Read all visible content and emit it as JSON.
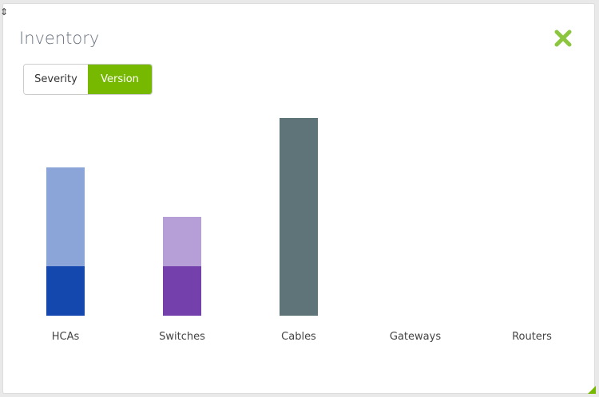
{
  "title": "Inventory",
  "toggle": {
    "options": [
      "Severity",
      "Version"
    ],
    "selected": "Version"
  },
  "icons": {
    "close": "close-x-icon",
    "resize": "resize-corner-icon"
  },
  "colors": {
    "accent": "#76b900",
    "close": "#8cc63f"
  },
  "chart_data": {
    "type": "bar",
    "stacked": true,
    "categories": [
      "HCAs",
      "Switches",
      "Cables",
      "Gateways",
      "Routers"
    ],
    "segments": [
      [
        {
          "value": 1,
          "color": "#1548ae"
        },
        {
          "value": 2,
          "color": "#8ba5d8"
        }
      ],
      [
        {
          "value": 1,
          "color": "#7340ac"
        },
        {
          "value": 1,
          "color": "#b59fd6"
        }
      ],
      [
        {
          "value": 4,
          "color": "#5f7479"
        }
      ],
      [],
      []
    ],
    "ylim": [
      0,
      4
    ],
    "grid": false,
    "legend": "none"
  }
}
